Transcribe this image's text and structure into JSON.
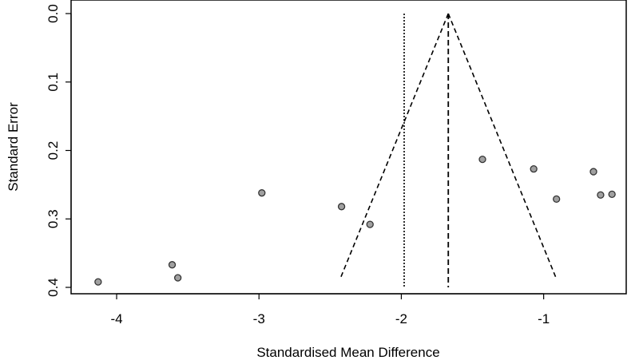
{
  "chart_data": {
    "type": "scatter",
    "subtype": "funnel-plot",
    "title": "",
    "xlabel": "Standardised Mean Difference",
    "ylabel": "Standard Error",
    "xlim": [
      -4.32,
      -0.42
    ],
    "ylim": [
      0.0,
      0.4
    ],
    "y_reversed": true,
    "x_ticks": [
      -4,
      -3,
      -2,
      -1
    ],
    "x_tick_labels": [
      "-4",
      "-3",
      "-2",
      "-1"
    ],
    "y_ticks": [
      0.0,
      0.1,
      0.2,
      0.3,
      0.4
    ],
    "y_tick_labels": [
      "0.0",
      "0.1",
      "0.2",
      "0.3",
      "0.4"
    ],
    "grid": false,
    "points": [
      {
        "x": -4.13,
        "y": 0.392
      },
      {
        "x": -3.61,
        "y": 0.367
      },
      {
        "x": -3.57,
        "y": 0.386
      },
      {
        "x": -2.98,
        "y": 0.262
      },
      {
        "x": -2.42,
        "y": 0.282
      },
      {
        "x": -2.22,
        "y": 0.308
      },
      {
        "x": -1.43,
        "y": 0.213
      },
      {
        "x": -1.07,
        "y": 0.227
      },
      {
        "x": -0.91,
        "y": 0.271
      },
      {
        "x": -0.65,
        "y": 0.231
      },
      {
        "x": -0.6,
        "y": 0.265
      },
      {
        "x": -0.52,
        "y": 0.264
      }
    ],
    "summary_effect": -1.67,
    "reference_line": -1.98,
    "funnel_max_se": 0.388,
    "colors": {
      "point_fill": "#a0a0a0",
      "point_stroke": "#333333",
      "line": "#000000"
    }
  }
}
